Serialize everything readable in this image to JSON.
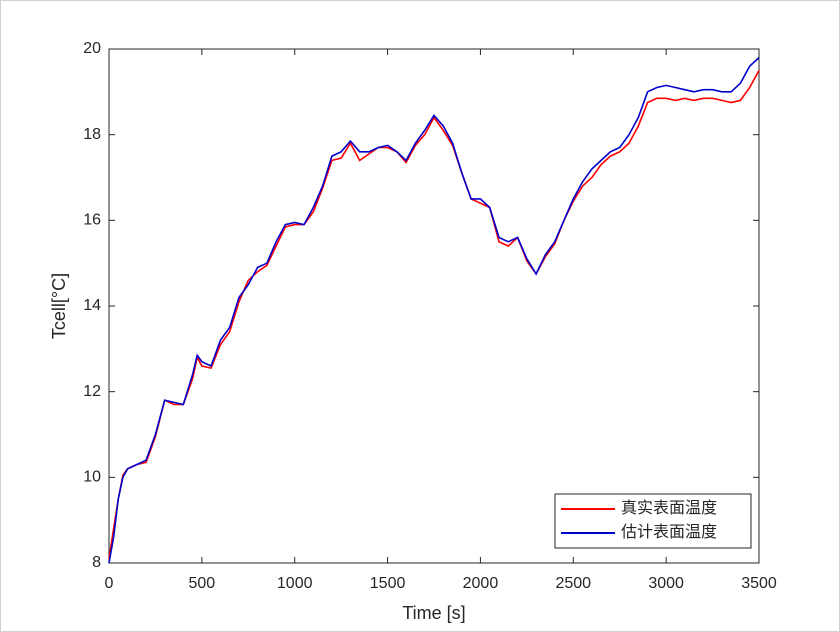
{
  "chart_data": {
    "type": "line",
    "x_label": "Time [s]",
    "y_label": "Tcell[°C]",
    "x": [
      0,
      25,
      50,
      75,
      100,
      150,
      200,
      250,
      300,
      350,
      400,
      450,
      475,
      500,
      550,
      600,
      650,
      700,
      750,
      800,
      850,
      900,
      950,
      1000,
      1050,
      1100,
      1150,
      1200,
      1250,
      1300,
      1350,
      1400,
      1450,
      1500,
      1550,
      1600,
      1650,
      1700,
      1750,
      1800,
      1850,
      1900,
      1950,
      2000,
      2050,
      2100,
      2150,
      2200,
      2250,
      2300,
      2350,
      2400,
      2450,
      2500,
      2550,
      2600,
      2650,
      2700,
      2750,
      2800,
      2850,
      2900,
      2950,
      3000,
      3050,
      3100,
      3150,
      3200,
      3250,
      3300,
      3350,
      3400,
      3450,
      3500
    ],
    "series": [
      {
        "name": "真实表面温度",
        "color": "#ff0000",
        "values": [
          8.1,
          8.8,
          9.5,
          10.05,
          10.2,
          10.3,
          10.35,
          10.95,
          11.8,
          11.7,
          11.7,
          12.3,
          12.8,
          12.6,
          12.55,
          13.1,
          13.4,
          14.1,
          14.6,
          14.8,
          14.95,
          15.4,
          15.85,
          15.9,
          15.9,
          16.2,
          16.75,
          17.4,
          17.45,
          17.8,
          17.4,
          17.55,
          17.7,
          17.7,
          17.6,
          17.35,
          17.75,
          18.0,
          18.4,
          18.1,
          17.75,
          17.1,
          16.5,
          16.4,
          16.3,
          15.5,
          15.4,
          15.6,
          15.05,
          14.75,
          15.15,
          15.45,
          16.0,
          16.45,
          16.8,
          17.0,
          17.3,
          17.5,
          17.6,
          17.8,
          18.2,
          18.75,
          18.85,
          18.85,
          18.8,
          18.85,
          18.8,
          18.85,
          18.85,
          18.8,
          18.75,
          18.8,
          19.1,
          19.5
        ]
      },
      {
        "name": "估计表面温度",
        "color": "#0000cc",
        "values": [
          8.0,
          8.6,
          9.5,
          10.0,
          10.2,
          10.3,
          10.4,
          11.0,
          11.8,
          11.75,
          11.7,
          12.4,
          12.85,
          12.7,
          12.6,
          13.2,
          13.5,
          14.2,
          14.5,
          14.9,
          15.0,
          15.5,
          15.9,
          15.95,
          15.9,
          16.3,
          16.8,
          17.5,
          17.6,
          17.85,
          17.6,
          17.6,
          17.7,
          17.75,
          17.6,
          17.4,
          17.8,
          18.1,
          18.45,
          18.2,
          17.8,
          17.1,
          16.5,
          16.5,
          16.3,
          15.6,
          15.5,
          15.6,
          15.1,
          14.75,
          15.2,
          15.5,
          16.0,
          16.5,
          16.9,
          17.2,
          17.4,
          17.6,
          17.7,
          18.0,
          18.4,
          19.0,
          19.1,
          19.15,
          19.1,
          19.05,
          19.0,
          19.05,
          19.05,
          19.0,
          19.0,
          19.2,
          19.6,
          19.8
        ]
      }
    ],
    "xlim": [
      0,
      3500
    ],
    "xticks": [
      0,
      500,
      1000,
      1500,
      2000,
      2500,
      3000,
      3500
    ],
    "ylim": [
      8,
      20
    ],
    "yticks": [
      8,
      10,
      12,
      14,
      16,
      18,
      20
    ],
    "grid": false,
    "legend": "lower right"
  }
}
